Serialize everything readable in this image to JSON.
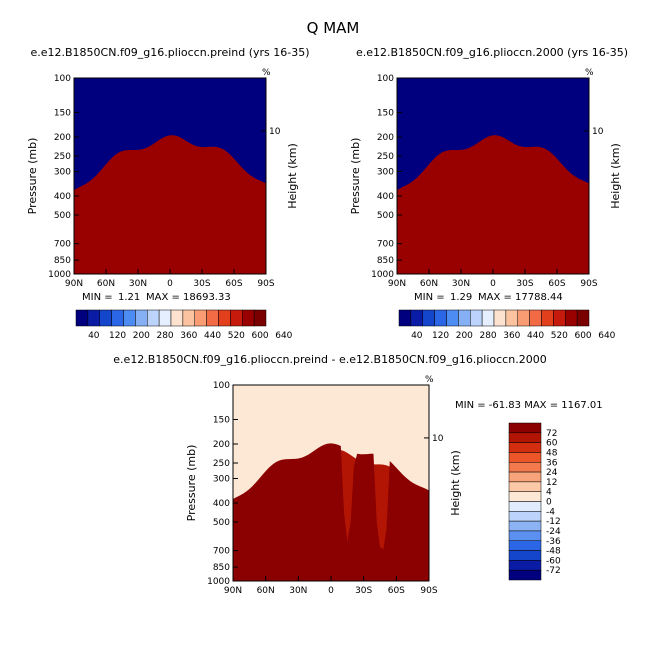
{
  "figure_title": "Q MAM",
  "panels": {
    "left": {
      "title": "e.e12.B1850CN.f09_g16.plioccn.preind (yrs 16-35)",
      "min_label": "MIN =",
      "min_value": "1.21",
      "max_label": "MAX =",
      "max_value": "18693.33"
    },
    "right": {
      "title": "e.e12.B1850CN.f09_g16.plioccn.2000 (yrs 16-35)",
      "min_label": "MIN =",
      "min_value": "1.29",
      "max_label": "MAX =",
      "max_value": "17788.44"
    },
    "diff": {
      "title": "e.e12.B1850CN.f09_g16.plioccn.preind - e.e12.B1850CN.f09_g16.plioccn.2000",
      "minmax_text": "MIN = -61.83   MAX = 1167.01"
    }
  },
  "axes": {
    "ylabel": "Pressure (mb)",
    "right_label": "Height (km)",
    "right_tick": "10",
    "corner_mark": "%",
    "pressure_ticks": [
      "100",
      "150",
      "200",
      "250",
      "300",
      "400",
      "500",
      "700",
      "850",
      "1000"
    ],
    "lat_ticks": [
      "90N",
      "60N",
      "30N",
      "0",
      "30S",
      "60S",
      "90S"
    ]
  },
  "colors": {
    "abs_scale": [
      "#00007f",
      "#0a1ca6",
      "#1446cc",
      "#2a66e6",
      "#4d8cf2",
      "#86b0f6",
      "#bcd4fb",
      "#e6efff",
      "#fde3cf",
      "#fcc3a1",
      "#f99b73",
      "#f36b45",
      "#e2401d",
      "#c51a0c",
      "#990000",
      "#7a0000"
    ],
    "diff_scale": [
      "#00007f",
      "#0a1ca6",
      "#1446cc",
      "#2a66e6",
      "#5b90f0",
      "#8cb4f5",
      "#bcd4fb",
      "#e0ebfd",
      "#fde8d5",
      "#fcc8a8",
      "#f9a37a",
      "#f47a4d",
      "#eb5528",
      "#d42e10",
      "#b31505",
      "#8b0000"
    ]
  },
  "chart_data": [
    {
      "type": "heatmap",
      "title": "e.e12.B1850CN.f09_g16.plioccn.preind (yrs 16-35)",
      "xlabel": "",
      "ylabel": "Pressure (mb)",
      "x_ticks": [
        "90N",
        "60N",
        "30N",
        "0",
        "30S",
        "60S",
        "90S"
      ],
      "y_ticks": [
        "100",
        "150",
        "200",
        "250",
        "300",
        "400",
        "500",
        "700",
        "850",
        "1000"
      ],
      "colorbar_labels": [
        "40",
        "120",
        "200",
        "280",
        "360",
        "440",
        "520",
        "600",
        "640"
      ],
      "min": 1.21,
      "max": 18693.33
    },
    {
      "type": "heatmap",
      "title": "e.e12.B1850CN.f09_g16.plioccn.2000 (yrs 16-35)",
      "xlabel": "",
      "ylabel": "Pressure (mb)",
      "x_ticks": [
        "90N",
        "60N",
        "30N",
        "0",
        "30S",
        "60S",
        "90S"
      ],
      "y_ticks": [
        "100",
        "150",
        "200",
        "250",
        "300",
        "400",
        "500",
        "700",
        "850",
        "1000"
      ],
      "colorbar_labels": [
        "40",
        "120",
        "200",
        "280",
        "360",
        "440",
        "520",
        "600",
        "640"
      ],
      "min": 1.29,
      "max": 17788.44
    },
    {
      "type": "heatmap",
      "title": "e.e12.B1850CN.f09_g16.plioccn.preind - e.e12.B1850CN.f09_g16.plioccn.2000",
      "xlabel": "",
      "ylabel": "Pressure (mb)",
      "x_ticks": [
        "90N",
        "60N",
        "30N",
        "0",
        "30S",
        "60S",
        "90S"
      ],
      "y_ticks": [
        "100",
        "150",
        "200",
        "250",
        "300",
        "400",
        "500",
        "700",
        "850",
        "1000"
      ],
      "colorbar_labels": [
        "72",
        "60",
        "48",
        "36",
        "24",
        "12",
        "4",
        "0",
        "-4",
        "-12",
        "-24",
        "-36",
        "-48",
        "-60",
        "-72"
      ],
      "min": -61.83,
      "max": 1167.01
    }
  ]
}
